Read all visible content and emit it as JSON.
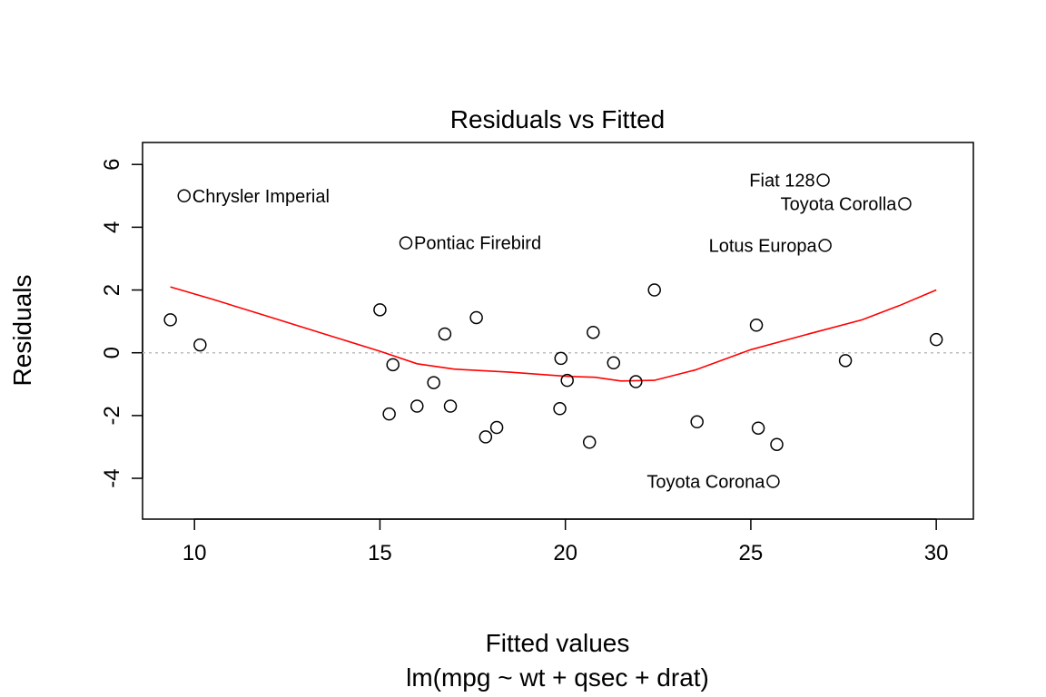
{
  "chart_data": {
    "type": "scatter",
    "title": "Residuals vs Fitted",
    "xlabel": "Fitted values",
    "subtitle": "lm(mpg ~ wt + qsec + drat)",
    "ylabel": "Residuals",
    "xlim": [
      8.6,
      31
    ],
    "ylim": [
      -5.3,
      6.7
    ],
    "x_ticks": [
      10,
      15,
      20,
      25,
      30
    ],
    "y_ticks": [
      -4,
      -2,
      0,
      2,
      4,
      6
    ],
    "reference_line": {
      "y": 0,
      "style": "dotted",
      "color": "#bdbdbd"
    },
    "points": [
      {
        "x": 9.35,
        "y": 1.05,
        "label": ""
      },
      {
        "x": 9.72,
        "y": 5.0,
        "label": "Chrysler Imperial"
      },
      {
        "x": 10.15,
        "y": 0.25,
        "label": ""
      },
      {
        "x": 15.0,
        "y": 1.37,
        "label": ""
      },
      {
        "x": 15.25,
        "y": -1.95,
        "label": ""
      },
      {
        "x": 15.35,
        "y": -0.38,
        "label": ""
      },
      {
        "x": 15.7,
        "y": 3.5,
        "label": "Pontiac Firebird"
      },
      {
        "x": 16.0,
        "y": -1.7,
        "label": ""
      },
      {
        "x": 16.45,
        "y": -0.95,
        "label": ""
      },
      {
        "x": 16.75,
        "y": 0.6,
        "label": ""
      },
      {
        "x": 16.9,
        "y": -1.7,
        "label": ""
      },
      {
        "x": 17.6,
        "y": 1.12,
        "label": ""
      },
      {
        "x": 17.85,
        "y": -2.68,
        "label": ""
      },
      {
        "x": 18.15,
        "y": -2.38,
        "label": ""
      },
      {
        "x": 19.85,
        "y": -1.78,
        "label": ""
      },
      {
        "x": 19.88,
        "y": -0.18,
        "label": ""
      },
      {
        "x": 20.05,
        "y": -0.88,
        "label": ""
      },
      {
        "x": 20.65,
        "y": -2.85,
        "label": ""
      },
      {
        "x": 20.75,
        "y": 0.65,
        "label": ""
      },
      {
        "x": 21.3,
        "y": -0.32,
        "label": ""
      },
      {
        "x": 21.9,
        "y": -0.92,
        "label": ""
      },
      {
        "x": 22.4,
        "y": 2.0,
        "label": ""
      },
      {
        "x": 23.55,
        "y": -2.2,
        "label": ""
      },
      {
        "x": 25.15,
        "y": 0.88,
        "label": ""
      },
      {
        "x": 25.2,
        "y": -2.4,
        "label": ""
      },
      {
        "x": 25.6,
        "y": -4.1,
        "label": "Toyota Corona"
      },
      {
        "x": 25.7,
        "y": -2.92,
        "label": ""
      },
      {
        "x": 26.95,
        "y": 5.5,
        "label": "Fiat 128"
      },
      {
        "x": 27.0,
        "y": 3.42,
        "label": "Lotus Europa"
      },
      {
        "x": 27.55,
        "y": -0.25,
        "label": ""
      },
      {
        "x": 29.15,
        "y": 4.75,
        "label": "Toyota Corolla"
      },
      {
        "x": 30.0,
        "y": 0.42,
        "label": ""
      }
    ],
    "smooth_line": {
      "color": "#ff0000",
      "x": [
        9.35,
        10.5,
        12,
        13.5,
        15.0,
        16.0,
        17.0,
        18.5,
        20.0,
        20.8,
        21.5,
        22.4,
        23.5,
        25.0,
        26.5,
        28.0,
        29.0,
        30.0
      ],
      "y": [
        2.1,
        1.7,
        1.15,
        0.6,
        0.05,
        -0.35,
        -0.52,
        -0.62,
        -0.75,
        -0.78,
        -0.9,
        -0.88,
        -0.55,
        0.1,
        0.58,
        1.05,
        1.5,
        2.0
      ]
    }
  }
}
